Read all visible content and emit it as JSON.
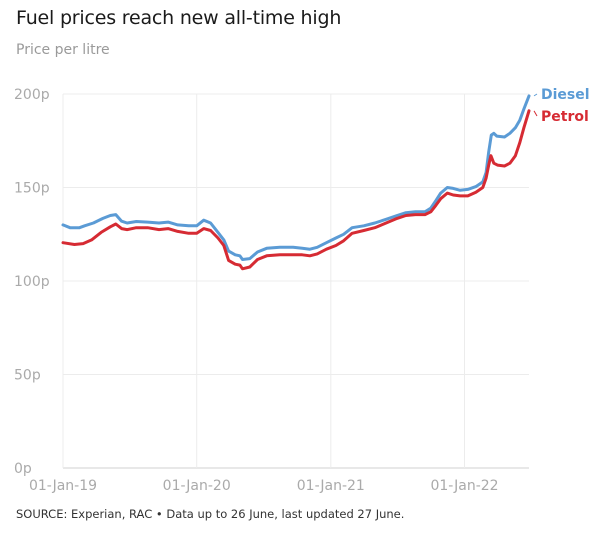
{
  "title": "Fuel prices reach new all-time high",
  "subtitle": "Price per litre",
  "source": "SOURCE: Experian, RAC • Data up to 26 June, last updated 27 June.",
  "chart_data": {
    "type": "line",
    "ylim": [
      0,
      200
    ],
    "yticks": [
      0,
      50,
      100,
      150,
      200
    ],
    "ytick_labels": [
      "0p",
      "50p",
      "100p",
      "150p",
      "200p"
    ],
    "xlim": [
      "2019-01-01",
      "2022-06-26"
    ],
    "xticks": [
      "2019-01-01",
      "2020-01-01",
      "2021-01-01",
      "2022-01-01"
    ],
    "xtick_labels": [
      "01-Jan-19",
      "01-Jan-20",
      "01-Jan-21",
      "01-Jan-22"
    ],
    "grid": true,
    "legend": "end-of-line labels",
    "series": [
      {
        "name": "Diesel",
        "color": "#5b9bd5",
        "points": [
          [
            "2019-01-01",
            130
          ],
          [
            "2019-01-20",
            128.5
          ],
          [
            "2019-02-15",
            128.5
          ],
          [
            "2019-03-01",
            129.5
          ],
          [
            "2019-03-25",
            131
          ],
          [
            "2019-04-20",
            133.5
          ],
          [
            "2019-05-10",
            135
          ],
          [
            "2019-05-25",
            135.5
          ],
          [
            "2019-06-10",
            132
          ],
          [
            "2019-06-25",
            131
          ],
          [
            "2019-07-20",
            131.8
          ],
          [
            "2019-08-20",
            131.5
          ],
          [
            "2019-09-20",
            131
          ],
          [
            "2019-10-15",
            131.5
          ],
          [
            "2019-11-10",
            130
          ],
          [
            "2019-12-10",
            129.5
          ],
          [
            "2020-01-01",
            129.5
          ],
          [
            "2020-01-20",
            132.5
          ],
          [
            "2020-02-08",
            131
          ],
          [
            "2020-02-28",
            126
          ],
          [
            "2020-03-15",
            122
          ],
          [
            "2020-03-28",
            116
          ],
          [
            "2020-04-15",
            114
          ],
          [
            "2020-04-28",
            113.5
          ],
          [
            "2020-05-05",
            111.5
          ],
          [
            "2020-05-25",
            112
          ],
          [
            "2020-06-15",
            115.5
          ],
          [
            "2020-07-10",
            117.5
          ],
          [
            "2020-08-15",
            118
          ],
          [
            "2020-09-20",
            118
          ],
          [
            "2020-10-15",
            117.5
          ],
          [
            "2020-11-05",
            117
          ],
          [
            "2020-11-25",
            118
          ],
          [
            "2020-12-20",
            120.5
          ],
          [
            "2021-01-15",
            123
          ],
          [
            "2021-02-05",
            125
          ],
          [
            "2021-02-28",
            128.5
          ],
          [
            "2021-04-01",
            129.5
          ],
          [
            "2021-05-01",
            131
          ],
          [
            "2021-06-01",
            133
          ],
          [
            "2021-07-01",
            135
          ],
          [
            "2021-07-25",
            136.5
          ],
          [
            "2021-08-20",
            137
          ],
          [
            "2021-09-15",
            137
          ],
          [
            "2021-10-01",
            139
          ],
          [
            "2021-10-15",
            143
          ],
          [
            "2021-10-28",
            147
          ],
          [
            "2021-11-15",
            150
          ],
          [
            "2021-12-01",
            149.5
          ],
          [
            "2021-12-20",
            148.5
          ],
          [
            "2022-01-10",
            149
          ],
          [
            "2022-02-01",
            150.5
          ],
          [
            "2022-02-20",
            153
          ],
          [
            "2022-03-01",
            158
          ],
          [
            "2022-03-08",
            169
          ],
          [
            "2022-03-15",
            178
          ],
          [
            "2022-03-22",
            179
          ],
          [
            "2022-03-30",
            177.5
          ],
          [
            "2022-04-20",
            177
          ],
          [
            "2022-05-05",
            179
          ],
          [
            "2022-05-20",
            182
          ],
          [
            "2022-06-01",
            186
          ],
          [
            "2022-06-12",
            192
          ],
          [
            "2022-06-26",
            199
          ]
        ]
      },
      {
        "name": "Petrol",
        "color": "#d62b33",
        "points": [
          [
            "2019-01-01",
            120.5
          ],
          [
            "2019-02-01",
            119.5
          ],
          [
            "2019-02-25",
            120
          ],
          [
            "2019-03-20",
            122
          ],
          [
            "2019-04-15",
            126
          ],
          [
            "2019-05-10",
            129
          ],
          [
            "2019-05-25",
            130.5
          ],
          [
            "2019-06-10",
            128
          ],
          [
            "2019-06-25",
            127.5
          ],
          [
            "2019-07-20",
            128.5
          ],
          [
            "2019-08-20",
            128.5
          ],
          [
            "2019-09-20",
            127.5
          ],
          [
            "2019-10-15",
            128
          ],
          [
            "2019-11-10",
            126.5
          ],
          [
            "2019-12-10",
            125.5
          ],
          [
            "2020-01-01",
            125.5
          ],
          [
            "2020-01-20",
            128
          ],
          [
            "2020-02-08",
            127
          ],
          [
            "2020-02-28",
            123
          ],
          [
            "2020-03-15",
            119
          ],
          [
            "2020-03-28",
            111
          ],
          [
            "2020-04-15",
            109
          ],
          [
            "2020-04-28",
            108.5
          ],
          [
            "2020-05-05",
            106.5
          ],
          [
            "2020-05-25",
            107.5
          ],
          [
            "2020-06-15",
            111.5
          ],
          [
            "2020-07-10",
            113.5
          ],
          [
            "2020-08-15",
            114
          ],
          [
            "2020-09-20",
            114
          ],
          [
            "2020-10-15",
            114
          ],
          [
            "2020-11-05",
            113.5
          ],
          [
            "2020-11-25",
            114.5
          ],
          [
            "2020-12-20",
            117
          ],
          [
            "2021-01-15",
            119
          ],
          [
            "2021-02-05",
            121.5
          ],
          [
            "2021-02-28",
            125.5
          ],
          [
            "2021-04-01",
            127
          ],
          [
            "2021-05-01",
            128.5
          ],
          [
            "2021-06-01",
            131
          ],
          [
            "2021-07-01",
            133.5
          ],
          [
            "2021-07-25",
            135
          ],
          [
            "2021-08-20",
            135.5
          ],
          [
            "2021-09-15",
            135.5
          ],
          [
            "2021-10-01",
            137
          ],
          [
            "2021-10-15",
            140.5
          ],
          [
            "2021-10-28",
            144
          ],
          [
            "2021-11-15",
            147
          ],
          [
            "2021-12-01",
            146
          ],
          [
            "2021-12-20",
            145.5
          ],
          [
            "2022-01-10",
            145.5
          ],
          [
            "2022-02-01",
            147.5
          ],
          [
            "2022-02-20",
            150
          ],
          [
            "2022-03-01",
            155
          ],
          [
            "2022-03-08",
            162
          ],
          [
            "2022-03-14",
            167
          ],
          [
            "2022-03-22",
            163
          ],
          [
            "2022-04-01",
            162
          ],
          [
            "2022-04-20",
            161.5
          ],
          [
            "2022-05-05",
            163
          ],
          [
            "2022-05-20",
            167
          ],
          [
            "2022-06-01",
            174
          ],
          [
            "2022-06-12",
            182
          ],
          [
            "2022-06-26",
            191
          ]
        ]
      }
    ]
  }
}
